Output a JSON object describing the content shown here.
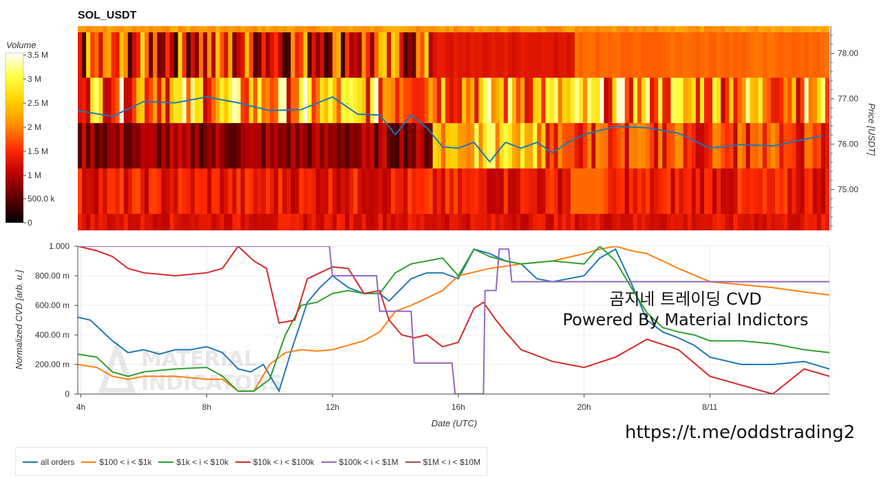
{
  "title": "SOL_USDT",
  "colorbar": {
    "title": "Volume",
    "ticks": [
      "3.5 M",
      "3 M",
      "2.5 M",
      "2 M",
      "1.5 M",
      "1 M",
      "500.0 k",
      "0"
    ]
  },
  "heatmap": {
    "y_axis_title": "Price [USDT]",
    "y_ticks": [
      "78.00",
      "77.00",
      "76.00",
      "75.00"
    ],
    "colorscale": [
      "#000000",
      "#5c0000",
      "#b80000",
      "#ff2a00",
      "#ff8c00",
      "#ffd000",
      "#ffff40",
      "#ffffff"
    ]
  },
  "cvd": {
    "y_axis_title": "Normalized CVD [arb. u.]",
    "y_ticks": [
      "1.000",
      "800.00 m",
      "600.00 m",
      "400.00 m",
      "200.00 m",
      "0"
    ],
    "x_ticks": [
      "4h",
      "8h",
      "12h",
      "16h",
      "20h",
      "8/11"
    ],
    "x_axis_title": "Date (UTC)"
  },
  "legend": [
    {
      "label": "all orders",
      "color": "#1f77b4"
    },
    {
      "label": "$100 < i < $1k",
      "color": "#ff7f0e"
    },
    {
      "label": "$1k < i < $10k",
      "color": "#2ca02c"
    },
    {
      "label": "$10k < i < $100k",
      "color": "#d62728"
    },
    {
      "label": "$100k < i < $1M",
      "color": "#9467bd"
    },
    {
      "label": "$1M < i < $10M",
      "color": "#8c564b"
    }
  ],
  "watermark": "MATERIAL INDICATORS",
  "overlay_line1": "곰지네 트레이딩 CVD",
  "overlay_line2": "Powered By Material Indictors",
  "url_text": "https://t.me/oddstrading2",
  "chart_data": [
    {
      "type": "heatmap",
      "title": "SOL_USDT",
      "ylabel": "Price [USDT]",
      "ylim": [
        74.1,
        78.6
      ],
      "price_line": {
        "x_hours": [
          3.9,
          5,
          6,
          7,
          8,
          9,
          10,
          11,
          12,
          12.8,
          13.5,
          14,
          14.5,
          15,
          15.5,
          16,
          16.5,
          17,
          17.5,
          18,
          18.5,
          19,
          19.5,
          20,
          21,
          22,
          23,
          24,
          25,
          26,
          27.6
        ],
        "price": [
          76.7,
          76.65,
          76.9,
          76.95,
          77.0,
          76.95,
          76.7,
          76.8,
          77.0,
          76.7,
          76.6,
          76.25,
          76.6,
          76.4,
          75.9,
          75.95,
          76.0,
          75.65,
          76.0,
          75.95,
          76.0,
          75.85,
          76.0,
          76.25,
          76.35,
          76.4,
          76.2,
          75.95,
          75.95,
          76.0,
          76.15
        ]
      }
    },
    {
      "type": "line",
      "xlabel": "Date (UTC)",
      "ylabel": "Normalized CVD [arb. u.]",
      "ylim": [
        0,
        1
      ],
      "x_hours_range": [
        3.9,
        27.8
      ],
      "series": [
        {
          "name": "all orders",
          "x": [
            3.9,
            4.3,
            5,
            5.5,
            6,
            6.5,
            7,
            7.5,
            8,
            8.5,
            9,
            9.4,
            9.8,
            10.3,
            10.7,
            11.2,
            11.6,
            12,
            12.5,
            13,
            13.5,
            13.8,
            14.5,
            15,
            15.5,
            16,
            16.5,
            17,
            17.5,
            18,
            18.5,
            19,
            19.5,
            20,
            20.5,
            21,
            21.5,
            22,
            22.5,
            23,
            23.5,
            24,
            25,
            26,
            27,
            27.8
          ],
          "y": [
            0.52,
            0.5,
            0.36,
            0.28,
            0.3,
            0.27,
            0.3,
            0.3,
            0.32,
            0.28,
            0.17,
            0.15,
            0.2,
            0.02,
            0.3,
            0.62,
            0.72,
            0.8,
            0.72,
            0.68,
            0.68,
            0.63,
            0.78,
            0.82,
            0.82,
            0.78,
            0.98,
            0.95,
            0.9,
            0.88,
            0.78,
            0.76,
            0.78,
            0.8,
            0.92,
            0.98,
            0.75,
            0.5,
            0.42,
            0.38,
            0.33,
            0.25,
            0.2,
            0.2,
            0.22,
            0.17
          ]
        },
        {
          "name": "$100 < i < $1k",
          "x": [
            3.9,
            4.5,
            5,
            5.5,
            6,
            7,
            8,
            8.5,
            9,
            9.5,
            10,
            10.5,
            11,
            11.5,
            12,
            13,
            13.5,
            14,
            14.5,
            15,
            15.5,
            16,
            17,
            18,
            19,
            20,
            20.5,
            21,
            21.5,
            22,
            23,
            24,
            25,
            26,
            27,
            27.8
          ],
          "y": [
            0.2,
            0.18,
            0.12,
            0.1,
            0.12,
            0.12,
            0.1,
            0.1,
            0.02,
            0.02,
            0.2,
            0.28,
            0.3,
            0.29,
            0.3,
            0.36,
            0.42,
            0.56,
            0.6,
            0.65,
            0.7,
            0.8,
            0.85,
            0.88,
            0.9,
            0.95,
            0.98,
            1.0,
            0.97,
            0.95,
            0.85,
            0.76,
            0.74,
            0.72,
            0.69,
            0.67
          ]
        },
        {
          "name": "$1k < i < $10k",
          "x": [
            3.9,
            4.5,
            5,
            5.5,
            6,
            7,
            8,
            8.5,
            9,
            9.5,
            10,
            10.5,
            11,
            11.5,
            12,
            12.5,
            13,
            13.5,
            14,
            14.5,
            15,
            15.5,
            16,
            16.5,
            17,
            17.5,
            18,
            19,
            20,
            20.5,
            21,
            21.5,
            22,
            22.5,
            23,
            23.5,
            24,
            25,
            26,
            27,
            27.8
          ],
          "y": [
            0.27,
            0.25,
            0.15,
            0.12,
            0.15,
            0.17,
            0.18,
            0.12,
            0.02,
            0.02,
            0.1,
            0.4,
            0.6,
            0.62,
            0.68,
            0.7,
            0.68,
            0.68,
            0.82,
            0.88,
            0.9,
            0.92,
            0.8,
            0.98,
            0.93,
            0.9,
            0.88,
            0.9,
            0.88,
            1.0,
            0.9,
            0.72,
            0.55,
            0.45,
            0.42,
            0.4,
            0.36,
            0.36,
            0.34,
            0.3,
            0.28
          ]
        },
        {
          "name": "$10k < i < $100k",
          "x": [
            3.9,
            4.5,
            5,
            5.5,
            6,
            7,
            8,
            8.5,
            9,
            9.5,
            9.9,
            10.3,
            10.8,
            11.2,
            11.6,
            12,
            12.5,
            13,
            13.5,
            13.8,
            14.2,
            14.6,
            15,
            15.5,
            16,
            16.5,
            16.8,
            17.2,
            17.5,
            18,
            19,
            20,
            21,
            22,
            23,
            24,
            25,
            26,
            27,
            27.8
          ],
          "y": [
            1.0,
            0.97,
            0.93,
            0.85,
            0.82,
            0.8,
            0.82,
            0.85,
            1.0,
            0.9,
            0.85,
            0.48,
            0.5,
            0.78,
            0.82,
            0.86,
            0.85,
            0.68,
            0.7,
            0.5,
            0.4,
            0.38,
            0.4,
            0.32,
            0.35,
            0.58,
            0.62,
            0.5,
            0.42,
            0.3,
            0.22,
            0.18,
            0.25,
            0.37,
            0.3,
            0.12,
            0.06,
            0.0,
            0.17,
            0.12
          ]
        },
        {
          "name": "$100k < i < $1M",
          "x": [
            3.9,
            11.9,
            12.0,
            13.4,
            13.5,
            14.5,
            14.6,
            15.8,
            15.9,
            16.8,
            16.85,
            17.2,
            17.3,
            17.6,
            17.7,
            27.8
          ],
          "y": [
            1.0,
            1.0,
            0.8,
            0.8,
            0.56,
            0.56,
            0.21,
            0.21,
            0.0,
            0.0,
            0.7,
            0.7,
            0.98,
            0.98,
            0.76,
            0.76
          ]
        },
        {
          "name": "$1M < i < $10M",
          "x": [],
          "y": []
        }
      ]
    }
  ]
}
